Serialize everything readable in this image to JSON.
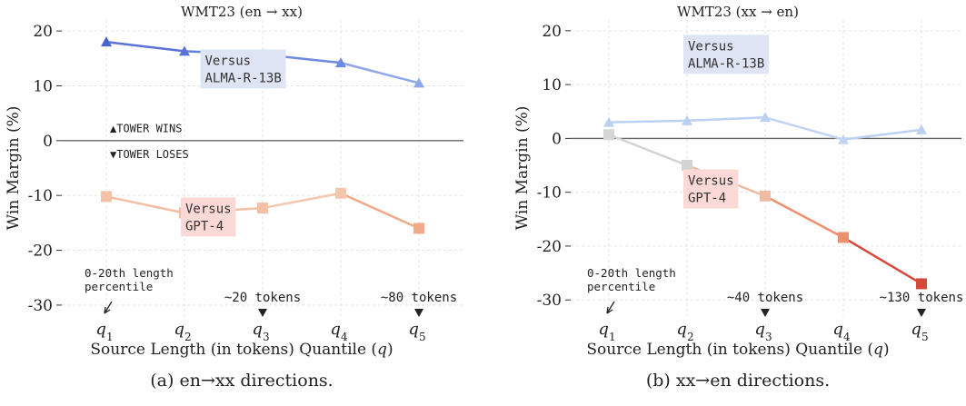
{
  "captions": [
    "(a) en→xx directions.",
    "(b) xx→en directions."
  ],
  "chart_data": [
    {
      "type": "line",
      "title": "WMT23 (en → xx)",
      "xlabel": "Source Length (in tokens) Quantile (q)",
      "ylabel": "Win Margin (%)",
      "categories": [
        "q1",
        "q2",
        "q3",
        "q4",
        "q5"
      ],
      "ylim": [
        -32,
        22
      ],
      "yticks": [
        20,
        10,
        0,
        -10,
        -20,
        -30
      ],
      "ytick_labels": [
        "20",
        "10",
        "0",
        "-10",
        "-20",
        "-30"
      ],
      "grid": true,
      "series": [
        {
          "name": "Versus ALMA-R-13B",
          "label_lines": [
            "Versus",
            "ALMA-R-13B"
          ],
          "marker": "triangle",
          "values": [
            18,
            16.3,
            15.7,
            14.2,
            10.5
          ],
          "colors": [
            "#4a63d2",
            "#5b73d8",
            "#6580dc",
            "#6f89e0",
            "#8fa7e9"
          ],
          "label_bg": "#dfe4f4",
          "label_anchor": [
            1.25,
            10.5
          ]
        },
        {
          "name": "Versus GPT-4",
          "label_lines": [
            "Versus",
            "GPT-4"
          ],
          "marker": "square",
          "values": [
            -10.2,
            -13.2,
            -12.3,
            -9.6,
            -16
          ],
          "colors": [
            "#f4c2a8",
            "#f4bea2",
            "#f4c0a6",
            "#f4c6ae",
            "#f2a989"
          ],
          "label_bg": "#fbd9d7",
          "label_anchor": [
            1.0,
            -16.5
          ]
        }
      ],
      "annotations": [
        {
          "text": "▲TOWER WINS",
          "x": 0.0,
          "y": 1.2
        },
        {
          "text": "▼TOWER LOSES",
          "x": 0.0,
          "y": -1.2
        }
      ],
      "length_note": [
        "0-20th length",
        "percentile"
      ],
      "token_marks": [
        {
          "q": 2,
          "text": "~20 tokens"
        },
        {
          "q": 4,
          "text": "~80 tokens"
        }
      ]
    },
    {
      "type": "line",
      "title": "WMT23 (xx → en)",
      "xlabel": "Source Length (in tokens) Quantile (q)",
      "ylabel": "Win Margin (%)",
      "categories": [
        "q1",
        "q2",
        "q3",
        "q4",
        "q5"
      ],
      "ylim": [
        -33,
        22
      ],
      "yticks": [
        20,
        10,
        0,
        -10,
        -20,
        -30
      ],
      "ytick_labels": [
        "20",
        "10",
        "0",
        "-10",
        "-20",
        "-30"
      ],
      "grid": true,
      "series": [
        {
          "name": "Versus ALMA-R-13B",
          "label_lines": [
            "Versus",
            "ALMA-R-13B"
          ],
          "marker": "triangle",
          "values": [
            3,
            3.3,
            3.9,
            -0.2,
            1.6
          ],
          "colors": [
            "#bcd0f2",
            "#bcd0f2",
            "#bcd0f2",
            "#c2d4f3",
            "#bcd0f2"
          ],
          "label_bg": "#dfe4f4",
          "label_anchor": [
            1.0,
            13
          ]
        },
        {
          "name": "Versus GPT-4",
          "label_lines": [
            "Versus",
            "GPT-4"
          ],
          "marker": "square",
          "values": [
            0.7,
            -5,
            -10.7,
            -18.4,
            -27
          ],
          "colors": [
            "#d6d6d6",
            "#d3d3d3",
            "#eebca5",
            "#ef8f6e",
            "#d6493a"
          ],
          "label_bg": "#fbd9d7",
          "label_anchor": [
            1.0,
            -12
          ]
        }
      ],
      "length_note": [
        "0-20th length",
        "percentile"
      ],
      "token_marks": [
        {
          "q": 2,
          "text": "~40 tokens"
        },
        {
          "q": 4,
          "text": "~130 tokens"
        }
      ]
    }
  ]
}
